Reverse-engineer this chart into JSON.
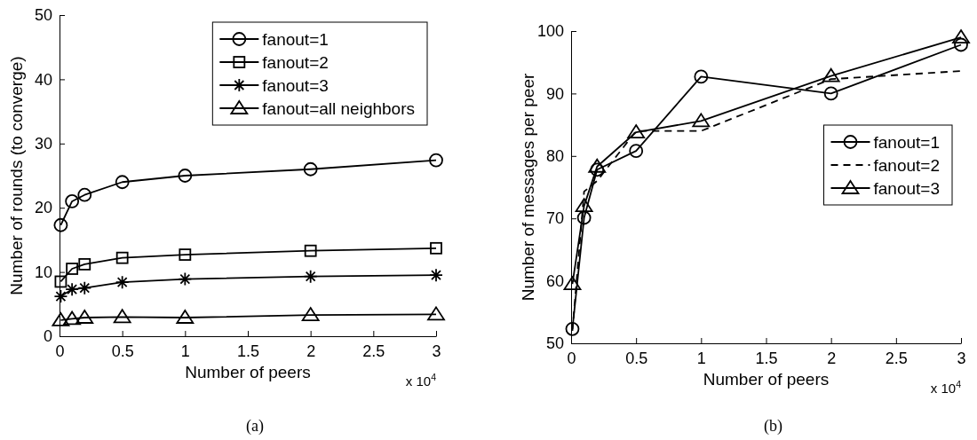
{
  "chart_data": [
    {
      "type": "line",
      "xlabel": "Number of peers",
      "ylabel": "Number of rounds (to converge)",
      "x": [
        0.01,
        0.1,
        0.2,
        0.5,
        1,
        2,
        3
      ],
      "xlim": [
        0,
        3
      ],
      "xticks": [
        0,
        0.5,
        1,
        1.5,
        2,
        2.5,
        3
      ],
      "ylim": [
        0,
        50
      ],
      "yticks": [
        0,
        10,
        20,
        30,
        40,
        50
      ],
      "legend": "top right",
      "grid": false,
      "series": [
        {
          "name": "fanout=1",
          "color": "#000000",
          "marker": "circle",
          "line_style": "solid",
          "values": [
            17.3,
            21,
            22,
            24,
            25,
            26,
            27.4
          ]
        },
        {
          "name": "fanout=2",
          "color": "#000000",
          "marker": "square",
          "line_style": "solid",
          "values": [
            8.5,
            10.5,
            11.2,
            12.2,
            12.7,
            13.3,
            13.7
          ]
        },
        {
          "name": "fanout=3",
          "color": "#000000",
          "marker": "cross",
          "line_style": "solid",
          "values": [
            6.2,
            7.3,
            7.5,
            8.4,
            8.9,
            9.3,
            9.5
          ]
        },
        {
          "name": "fanout=all neighbors",
          "color": "#000000",
          "marker": "triangle",
          "line_style": "solid",
          "values": [
            2.5,
            2.7,
            2.9,
            3.0,
            2.9,
            3.3,
            3.4
          ]
        }
      ],
      "annotations": [
        "x 10$^{4}$",
        "(a)"
      ]
    },
    {
      "type": "line",
      "xlabel": "Number of peers",
      "ylabel": "Number of messages per peer",
      "x": [
        0.01,
        0.1,
        0.2,
        0.5,
        1,
        2,
        3
      ],
      "xlim": [
        0,
        3
      ],
      "xticks": [
        0,
        0.5,
        1,
        1.5,
        2,
        2.5,
        3
      ],
      "ylim": [
        50,
        100
      ],
      "yticks": [
        50,
        60,
        70,
        80,
        90,
        100
      ],
      "legend": "right",
      "grid": false,
      "series": [
        {
          "name": "fanout=1",
          "color": "#000000",
          "marker": "circle",
          "line_style": "solid",
          "values": [
            52.3,
            70.1,
            77.8,
            80.8,
            92.7,
            90,
            97.8
          ]
        },
        {
          "name": "fanout=2",
          "color": "#000000",
          "marker": "none",
          "line_style": "dashed",
          "values": [
            52,
            74.3,
            76,
            84,
            84,
            92.3,
            93.6
          ]
        },
        {
          "name": "fanout=3",
          "color": "#000000",
          "marker": "triangle",
          "line_style": "solid",
          "values": [
            59.5,
            72,
            78.3,
            83.8,
            85.6,
            92.8,
            99
          ]
        }
      ],
      "annotations": [
        "x 10$^{4}$",
        "(b)"
      ]
    }
  ]
}
